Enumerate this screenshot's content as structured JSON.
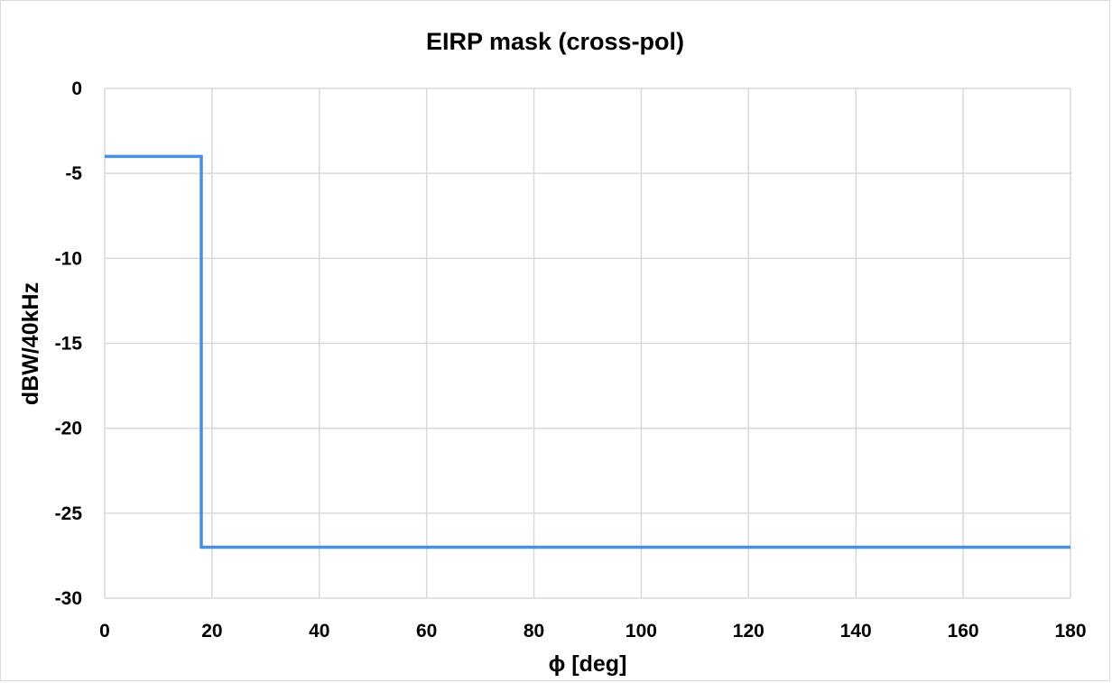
{
  "chart_data": {
    "type": "line",
    "title": "EIRP mask (cross-pol)",
    "xlabel": "ϕ [deg]",
    "ylabel": "dBW/40kHz",
    "xlim": [
      0,
      180
    ],
    "ylim": [
      -30,
      0
    ],
    "xticks": [
      0,
      20,
      40,
      60,
      80,
      100,
      120,
      140,
      160,
      180
    ],
    "yticks": [
      0,
      -5,
      -10,
      -15,
      -20,
      -25,
      -30
    ],
    "grid": true,
    "legend": "none",
    "series": [
      {
        "color": "#4a90e2",
        "x": [
          0,
          18,
          18,
          180
        ],
        "y": [
          -4,
          -4,
          -27,
          -27
        ]
      }
    ]
  }
}
